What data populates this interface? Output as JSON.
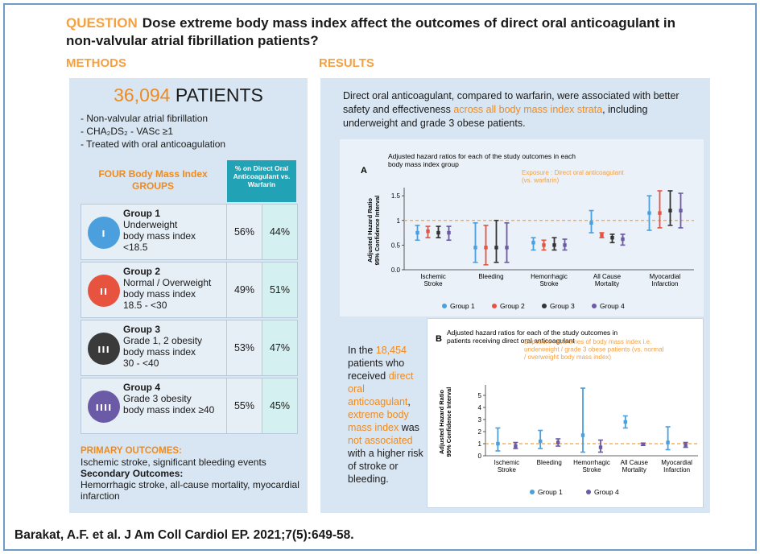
{
  "question": {
    "label": "QUESTION",
    "text": "Dose extreme body mass index affect the outcomes of direct oral anticoagulant in non-valvular atrial fibrillation patients?"
  },
  "methods": {
    "heading": "METHODS",
    "patients_number": "36,094",
    "patients_label": "PATIENTS",
    "bullets": [
      "- Non-valvular atrial fibrillation",
      "- CHA₂DS₂ - VASc ≥1",
      "- Treated with oral anticoagulation"
    ],
    "table_heading": "FOUR Body Mass Index GROUPS",
    "table_pct_heading": "% on Direct Oral Anticoagulant vs. Warfarin",
    "groups": [
      {
        "name": "Group 1",
        "lines": [
          "Underweight",
          "body mass index",
          "<18.5"
        ],
        "doac": "56%",
        "warfarin": "44%",
        "icon": "person-icon-1",
        "color": "#4a9fdc"
      },
      {
        "name": "Group 2",
        "lines": [
          "Normal / Overweight",
          "body mass index",
          "18.5 - <30"
        ],
        "doac": "49%",
        "warfarin": "51%",
        "icon": "person-icon-2",
        "color": "#e8533f"
      },
      {
        "name": "Group 3",
        "lines": [
          "Grade 1, 2 obesity",
          "body mass index",
          "30 - <40"
        ],
        "doac": "53%",
        "warfarin": "47%",
        "icon": "person-icon-3",
        "color": "#3a3a3a"
      },
      {
        "name": "Group 4",
        "lines": [
          "Grade 3 obesity",
          "body mass index ≥40"
        ],
        "doac": "55%",
        "warfarin": "45%",
        "icon": "person-icon-4",
        "color": "#6b5aa6"
      }
    ],
    "primary_heading": "PRIMARY OUTCOMES:",
    "primary_text": "Ischemic stroke, significant bleeding events",
    "secondary_heading": "Secondary Outcomes:",
    "secondary_text": "Hemorrhagic stroke, all-cause mortality, myocardial infarction"
  },
  "results": {
    "heading": "RESULTS",
    "summary_pre": "Direct oral anticoagulant, compared to warfarin, were associated with better safety and effectiveness ",
    "summary_highlight": "across all body mass index strata",
    "summary_post": ", including underweight and grade 3 obese patients.",
    "left_text": {
      "p1": "In the ",
      "n": "18,454",
      "p2": " patients who received ",
      "h1": "direct oral anticoagulant",
      "p3": ", ",
      "h2": "extreme body mass index",
      "p4": " was ",
      "h3": "not associated",
      "p5": " with a higher risk of stroke or bleeding."
    }
  },
  "chart_data": [
    {
      "type": "scatter",
      "panel": "A",
      "title": "Adjusted hazard ratios for each of the study outcomes in each body mass index group",
      "annotation": "Exposure : Direct oral anticoagulant (vs. warfarin)",
      "ylabel": "Adjusted Hazard Ratio 95% Confidence Interval",
      "ylim": [
        0,
        1.6
      ],
      "yticks": [
        "0.0",
        "0.5",
        "1",
        "1.5"
      ],
      "reference_line": 1,
      "categories": [
        "Ischemic Stroke",
        "Bleeding",
        "Hemorrhagic Stroke",
        "All Cause Mortality",
        "Myocardial Infarction"
      ],
      "series": [
        {
          "name": "Group 1",
          "color": "#4a9fdc",
          "estimate": [
            0.75,
            0.45,
            0.55,
            0.95,
            1.15
          ],
          "lower": [
            0.6,
            0.15,
            0.4,
            0.75,
            0.8
          ],
          "upper": [
            0.9,
            0.95,
            0.65,
            1.2,
            1.5
          ]
        },
        {
          "name": "Group 2",
          "color": "#e8533f",
          "estimate": [
            0.78,
            0.45,
            0.5,
            0.7,
            1.15
          ],
          "lower": [
            0.65,
            0.1,
            0.4,
            0.65,
            0.85
          ],
          "upper": [
            0.88,
            0.9,
            0.6,
            0.75,
            1.6
          ]
        },
        {
          "name": "Group 3",
          "color": "#333333",
          "estimate": [
            0.75,
            0.45,
            0.5,
            0.65,
            1.2
          ],
          "lower": [
            0.65,
            0.15,
            0.4,
            0.55,
            0.9
          ],
          "upper": [
            0.88,
            1.0,
            0.65,
            0.72,
            1.6
          ]
        },
        {
          "name": "Group 4",
          "color": "#6b5aa6",
          "estimate": [
            0.75,
            0.45,
            0.5,
            0.62,
            1.2
          ],
          "lower": [
            0.6,
            0.15,
            0.4,
            0.5,
            0.85
          ],
          "upper": [
            0.88,
            0.95,
            0.62,
            0.72,
            1.55
          ]
        }
      ]
    },
    {
      "type": "scatter",
      "panel": "B",
      "title": "Adjusted hazard ratios for each of the study outcomes in patients receiving direct oral anticoagulant",
      "annotation": "Exposure : Extremes of body mass index i.e. underweight / grade 3 obese patients (vs. normal / overweight body mass index)",
      "ylabel": "Adjusted Hazard Ratio 95% Confidence Interval",
      "ylim": [
        0,
        5.6
      ],
      "yticks": [
        "0",
        "1",
        "2",
        "3",
        "4",
        "5"
      ],
      "reference_line": 1,
      "categories": [
        "Ischemic Stroke",
        "Bleeding",
        "Hemorrhagic Stroke",
        "All Cause Mortality",
        "Myocardial Infarction"
      ],
      "series": [
        {
          "name": "Group 1",
          "color": "#4a9fdc",
          "estimate": [
            1.0,
            1.2,
            1.7,
            2.8,
            1.1
          ],
          "lower": [
            0.4,
            0.6,
            0.3,
            2.3,
            0.5
          ],
          "upper": [
            2.3,
            2.1,
            5.6,
            3.3,
            2.4
          ]
        },
        {
          "name": "Group 4",
          "color": "#6b5aa6",
          "estimate": [
            0.8,
            1.1,
            0.7,
            0.95,
            0.9
          ],
          "lower": [
            0.6,
            0.8,
            0.3,
            0.85,
            0.7
          ],
          "upper": [
            1.1,
            1.4,
            1.3,
            1.05,
            1.1
          ]
        }
      ]
    }
  ],
  "citation": "Barakat, A.F. et al. J Am Coll Cardiol EP. 2021;7(5):649-58."
}
